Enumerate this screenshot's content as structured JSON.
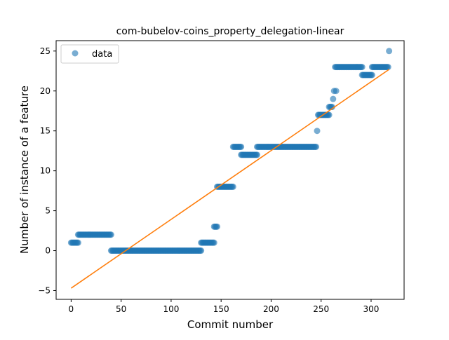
{
  "chart_data": {
    "type": "scatter",
    "title": "com-bubelov-coins_property_delegation-linear",
    "xlabel": "Commit number",
    "ylabel": "Number of instance of a feature",
    "xlim": [
      -15,
      333
    ],
    "ylim": [
      -6.1,
      26.3
    ],
    "xticks": [
      0,
      50,
      100,
      150,
      200,
      250,
      300
    ],
    "yticks": [
      -5,
      0,
      5,
      10,
      15,
      20,
      25
    ],
    "grid": false,
    "legend": {
      "position": "top-left",
      "entries": [
        "data"
      ]
    },
    "colors": {
      "points": "#1f77b4",
      "fit": "#ff7f0e"
    },
    "segments": [
      {
        "x0": 0,
        "x1": 7,
        "y": 1
      },
      {
        "x0": 7,
        "x1": 40,
        "y": 2
      },
      {
        "x0": 40,
        "x1": 130,
        "y": 0
      },
      {
        "x0": 130,
        "x1": 143,
        "y": 1
      },
      {
        "x0": 143,
        "x1": 146,
        "y": 3
      },
      {
        "x0": 146,
        "x1": 162,
        "y": 8
      },
      {
        "x0": 162,
        "x1": 170,
        "y": 13
      },
      {
        "x0": 170,
        "x1": 186,
        "y": 12
      },
      {
        "x0": 186,
        "x1": 245,
        "y": 13
      },
      {
        "x0": 247,
        "x1": 258,
        "y": 17
      },
      {
        "x0": 258,
        "x1": 261,
        "y": 18
      },
      {
        "x0": 264,
        "x1": 291,
        "y": 23
      },
      {
        "x0": 291,
        "x1": 301,
        "y": 22
      },
      {
        "x0": 301,
        "x1": 317,
        "y": 23
      }
    ],
    "points": [
      {
        "x": 246,
        "y": 15
      },
      {
        "x": 262,
        "y": 19
      },
      {
        "x": 263,
        "y": 20
      },
      {
        "x": 265,
        "y": 20
      },
      {
        "x": 318,
        "y": 25
      }
    ],
    "fit_line": {
      "x": [
        0,
        318
      ],
      "y": [
        -4.7,
        22.7
      ]
    }
  }
}
